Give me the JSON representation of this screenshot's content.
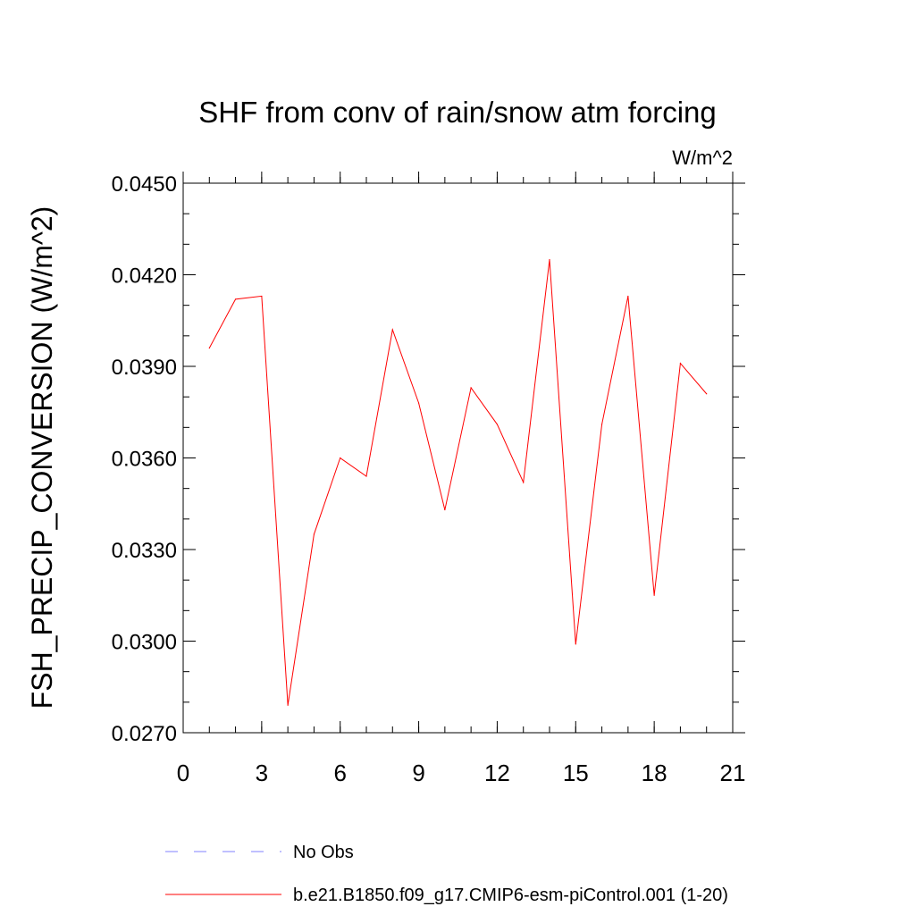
{
  "chart_data": {
    "type": "line",
    "title": "SHF from conv of rain/snow atm forcing",
    "units_label": "W/m^2",
    "ylabel": "FSH_PRECIP_CONVERSION  (W/m^2)",
    "xlabel": "",
    "xlim": [
      0,
      21
    ],
    "ylim": [
      0.027,
      0.045
    ],
    "x_ticks": [
      0,
      3,
      6,
      9,
      12,
      15,
      18,
      21
    ],
    "x_tick_labels": [
      "0",
      "3",
      "6",
      "9",
      "12",
      "15",
      "18",
      "21"
    ],
    "y_ticks": [
      0.027,
      0.03,
      0.033,
      0.036,
      0.039,
      0.042,
      0.045
    ],
    "y_tick_labels": [
      "0.0270",
      "0.0300",
      "0.0330",
      "0.0360",
      "0.0390",
      "0.0420",
      "0.0450"
    ],
    "x_minor_step": 1,
    "y_minor_step": 0.001,
    "grid": false,
    "legend_position": "bottom",
    "series": [
      {
        "name": "b.e21.B1850.f09_g17.CMIP6-esm-piControl.001 (1-20)",
        "color": "#ff0000",
        "style": "solid",
        "x": [
          1,
          2,
          3,
          4,
          5,
          6,
          7,
          8,
          9,
          10,
          11,
          12,
          13,
          14,
          15,
          16,
          17,
          18,
          19,
          20
        ],
        "y": [
          0.0396,
          0.0412,
          0.0413,
          0.0279,
          0.0335,
          0.036,
          0.0354,
          0.0402,
          0.0378,
          0.0343,
          0.0383,
          0.0371,
          0.0352,
          0.0425,
          0.0299,
          0.0371,
          0.0413,
          0.0315,
          0.0391,
          0.0381
        ]
      }
    ],
    "legend": [
      {
        "label": "No Obs",
        "color": "#8080ff",
        "style": "dashed"
      },
      {
        "label": "b.e21.B1850.f09_g17.CMIP6-esm-piControl.001 (1-20)",
        "color": "#ff0000",
        "style": "solid"
      }
    ]
  }
}
